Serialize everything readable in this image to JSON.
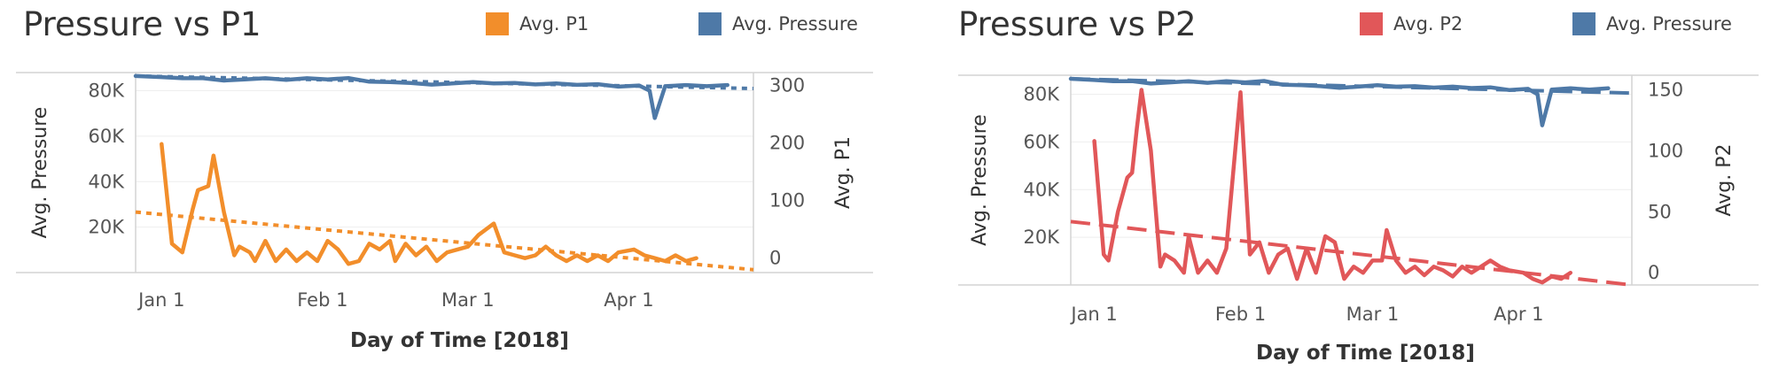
{
  "chart_data": [
    {
      "type": "line",
      "title": "Pressure vs P1",
      "xlabel": "Day of Time [2018]",
      "ylabel": "Avg. Pressure",
      "ylabel_right": "Avg. P1",
      "x_ticks": [
        "Jan 1",
        "Feb 1",
        "Mar 1",
        "Apr 1"
      ],
      "x_range": [
        "2017-12-27",
        "2018-04-25"
      ],
      "y_left": {
        "ticks": [
          "20K",
          "40K",
          "60K",
          "80K"
        ],
        "tick_values": [
          20000,
          40000,
          60000,
          80000
        ],
        "range": [
          0,
          88000
        ]
      },
      "y_right": {
        "ticks": [
          "0",
          "100",
          "200",
          "300"
        ],
        "tick_values": [
          0,
          100,
          200,
          300
        ],
        "range": [
          -25,
          322
        ]
      },
      "legend": [
        {
          "label": "Avg. P1",
          "color": "#F28E2B"
        },
        {
          "label": "Avg. Pressure",
          "color": "#4E79A7"
        }
      ],
      "legend_position": "top-right",
      "grid": true,
      "series": [
        {
          "name": "Avg. Pressure",
          "axis": "left",
          "color": "#4E79A7",
          "trend": {
            "style": "dotted",
            "start": [
              "2017-12-27",
              86500
            ],
            "end": [
              "2018-04-25",
              81000
            ]
          },
          "points": [
            [
              "2017-12-27",
              86500
            ],
            [
              "2018-01-01",
              86000
            ],
            [
              "2018-01-05",
              85500
            ],
            [
              "2018-01-09",
              85500
            ],
            [
              "2018-01-13",
              84500
            ],
            [
              "2018-01-17",
              85000
            ],
            [
              "2018-01-21",
              85500
            ],
            [
              "2018-01-25",
              84800
            ],
            [
              "2018-01-29",
              85500
            ],
            [
              "2018-02-02",
              85000
            ],
            [
              "2018-02-06",
              85600
            ],
            [
              "2018-02-10",
              84000
            ],
            [
              "2018-02-14",
              83800
            ],
            [
              "2018-02-18",
              83400
            ],
            [
              "2018-02-22",
              82700
            ],
            [
              "2018-02-26",
              83200
            ],
            [
              "2018-03-02",
              83800
            ],
            [
              "2018-03-06",
              83200
            ],
            [
              "2018-03-10",
              83400
            ],
            [
              "2018-03-14",
              82800
            ],
            [
              "2018-03-18",
              83200
            ],
            [
              "2018-03-22",
              82600
            ],
            [
              "2018-03-26",
              82900
            ],
            [
              "2018-03-30",
              81800
            ],
            [
              "2018-04-03",
              82300
            ],
            [
              "2018-04-05",
              80000
            ],
            [
              "2018-04-06",
              68000
            ],
            [
              "2018-04-08",
              82000
            ],
            [
              "2018-04-12",
              82500
            ],
            [
              "2018-04-16",
              82000
            ],
            [
              "2018-04-20",
              82500
            ]
          ]
        },
        {
          "name": "Avg. P1",
          "axis": "right",
          "color": "#F28E2B",
          "trend": {
            "style": "dotted",
            "start": [
              "2017-12-27",
              80
            ],
            "end": [
              "2018-04-25",
              -20
            ]
          },
          "points": [
            [
              "2018-01-01",
              198
            ],
            [
              "2018-01-03",
              25
            ],
            [
              "2018-01-05",
              10
            ],
            [
              "2018-01-07",
              85
            ],
            [
              "2018-01-08",
              118
            ],
            [
              "2018-01-10",
              125
            ],
            [
              "2018-01-11",
              178
            ],
            [
              "2018-01-13",
              80
            ],
            [
              "2018-01-15",
              5
            ],
            [
              "2018-01-16",
              20
            ],
            [
              "2018-01-18",
              10
            ],
            [
              "2018-01-19",
              -5
            ],
            [
              "2018-01-21",
              30
            ],
            [
              "2018-01-23",
              -5
            ],
            [
              "2018-01-25",
              15
            ],
            [
              "2018-01-27",
              -5
            ],
            [
              "2018-01-29",
              10
            ],
            [
              "2018-01-31",
              -5
            ],
            [
              "2018-02-02",
              30
            ],
            [
              "2018-02-04",
              15
            ],
            [
              "2018-02-06",
              -10
            ],
            [
              "2018-02-08",
              -5
            ],
            [
              "2018-02-10",
              25
            ],
            [
              "2018-02-12",
              15
            ],
            [
              "2018-02-14",
              30
            ],
            [
              "2018-02-15",
              -5
            ],
            [
              "2018-02-17",
              25
            ],
            [
              "2018-02-19",
              5
            ],
            [
              "2018-02-21",
              20
            ],
            [
              "2018-02-23",
              -5
            ],
            [
              "2018-02-25",
              10
            ],
            [
              "2018-02-27",
              15
            ],
            [
              "2018-03-01",
              20
            ],
            [
              "2018-03-03",
              40
            ],
            [
              "2018-03-06",
              60
            ],
            [
              "2018-03-08",
              10
            ],
            [
              "2018-03-10",
              5
            ],
            [
              "2018-03-12",
              0
            ],
            [
              "2018-03-14",
              5
            ],
            [
              "2018-03-16",
              20
            ],
            [
              "2018-03-18",
              5
            ],
            [
              "2018-03-20",
              -5
            ],
            [
              "2018-03-22",
              5
            ],
            [
              "2018-03-24",
              -5
            ],
            [
              "2018-03-26",
              5
            ],
            [
              "2018-03-28",
              -5
            ],
            [
              "2018-03-30",
              10
            ],
            [
              "2018-04-02",
              15
            ],
            [
              "2018-04-04",
              5
            ],
            [
              "2018-04-06",
              0
            ],
            [
              "2018-04-08",
              -5
            ],
            [
              "2018-04-10",
              5
            ],
            [
              "2018-04-12",
              -5
            ],
            [
              "2018-04-14",
              0
            ]
          ]
        }
      ]
    },
    {
      "type": "line",
      "title": "Pressure vs P2",
      "xlabel": "Day of Time [2018]",
      "ylabel": "Avg. Pressure",
      "ylabel_right": "Avg. P2",
      "x_ticks": [
        "Jan 1",
        "Feb 1",
        "Mar 1",
        "Apr 1"
      ],
      "x_range": [
        "2017-12-27",
        "2018-04-25"
      ],
      "y_left": {
        "ticks": [
          "20K",
          "40K",
          "60K",
          "80K"
        ],
        "tick_values": [
          20000,
          40000,
          60000,
          80000
        ],
        "range": [
          0,
          88000
        ]
      },
      "y_right": {
        "ticks": [
          "0",
          "50",
          "100",
          "150"
        ],
        "tick_values": [
          0,
          50,
          100,
          150
        ],
        "range": [
          -10,
          162
        ]
      },
      "legend": [
        {
          "label": "Avg. P2",
          "color": "#E15759"
        },
        {
          "label": "Avg. Pressure",
          "color": "#4E79A7"
        }
      ],
      "legend_position": "top-right",
      "grid": true,
      "series": [
        {
          "name": "Avg. Pressure",
          "axis": "left",
          "color": "#4E79A7",
          "trend": {
            "style": "dashed",
            "start": [
              "2017-12-27",
              86500
            ],
            "end": [
              "2018-04-25",
              80500
            ]
          },
          "points": [
            [
              "2017-12-27",
              86500
            ],
            [
              "2018-01-01",
              86000
            ],
            [
              "2018-01-05",
              85500
            ],
            [
              "2018-01-09",
              85500
            ],
            [
              "2018-01-13",
              84500
            ],
            [
              "2018-01-17",
              85000
            ],
            [
              "2018-01-21",
              85500
            ],
            [
              "2018-01-25",
              84800
            ],
            [
              "2018-01-29",
              85500
            ],
            [
              "2018-02-02",
              85000
            ],
            [
              "2018-02-06",
              85600
            ],
            [
              "2018-02-10",
              84000
            ],
            [
              "2018-02-14",
              83800
            ],
            [
              "2018-02-18",
              83400
            ],
            [
              "2018-02-22",
              82700
            ],
            [
              "2018-02-26",
              83200
            ],
            [
              "2018-03-02",
              83800
            ],
            [
              "2018-03-06",
              83200
            ],
            [
              "2018-03-10",
              83400
            ],
            [
              "2018-03-14",
              82800
            ],
            [
              "2018-03-18",
              83200
            ],
            [
              "2018-03-22",
              82600
            ],
            [
              "2018-03-26",
              82900
            ],
            [
              "2018-03-30",
              81800
            ],
            [
              "2018-04-03",
              82300
            ],
            [
              "2018-04-05",
              80000
            ],
            [
              "2018-04-06",
              67000
            ],
            [
              "2018-04-08",
              82000
            ],
            [
              "2018-04-12",
              82500
            ],
            [
              "2018-04-16",
              82000
            ],
            [
              "2018-04-20",
              82500
            ]
          ]
        },
        {
          "name": "Avg. P2",
          "axis": "right",
          "color": "#E15759",
          "trend": {
            "style": "dashed",
            "start": [
              "2017-12-27",
              42
            ],
            "end": [
              "2018-04-25",
              -10
            ]
          },
          "points": [
            [
              "2018-01-01",
              108
            ],
            [
              "2018-01-03",
              15
            ],
            [
              "2018-01-04",
              10
            ],
            [
              "2018-01-06",
              50
            ],
            [
              "2018-01-08",
              78
            ],
            [
              "2018-01-09",
              82
            ],
            [
              "2018-01-10",
              118
            ],
            [
              "2018-01-11",
              150
            ],
            [
              "2018-01-13",
              100
            ],
            [
              "2018-01-15",
              5
            ],
            [
              "2018-01-16",
              15
            ],
            [
              "2018-01-18",
              10
            ],
            [
              "2018-01-20",
              0
            ],
            [
              "2018-01-21",
              30
            ],
            [
              "2018-01-23",
              0
            ],
            [
              "2018-01-25",
              10
            ],
            [
              "2018-01-27",
              0
            ],
            [
              "2018-01-29",
              20
            ],
            [
              "2018-02-01",
              148
            ],
            [
              "2018-02-03",
              15
            ],
            [
              "2018-02-05",
              25
            ],
            [
              "2018-02-07",
              0
            ],
            [
              "2018-02-09",
              15
            ],
            [
              "2018-02-11",
              20
            ],
            [
              "2018-02-13",
              -5
            ],
            [
              "2018-02-15",
              20
            ],
            [
              "2018-02-17",
              0
            ],
            [
              "2018-02-19",
              30
            ],
            [
              "2018-02-21",
              25
            ],
            [
              "2018-02-23",
              -5
            ],
            [
              "2018-02-25",
              5
            ],
            [
              "2018-02-27",
              0
            ],
            [
              "2018-03-01",
              10
            ],
            [
              "2018-03-03",
              10
            ],
            [
              "2018-03-04",
              35
            ],
            [
              "2018-03-06",
              10
            ],
            [
              "2018-03-08",
              0
            ],
            [
              "2018-03-10",
              5
            ],
            [
              "2018-03-12",
              -2
            ],
            [
              "2018-03-14",
              5
            ],
            [
              "2018-03-16",
              2
            ],
            [
              "2018-03-18",
              -3
            ],
            [
              "2018-03-20",
              5
            ],
            [
              "2018-03-22",
              0
            ],
            [
              "2018-03-24",
              5
            ],
            [
              "2018-03-26",
              10
            ],
            [
              "2018-03-28",
              5
            ],
            [
              "2018-03-30",
              2
            ],
            [
              "2018-04-02",
              0
            ],
            [
              "2018-04-04",
              -5
            ],
            [
              "2018-04-06",
              -8
            ],
            [
              "2018-04-08",
              -3
            ],
            [
              "2018-04-10",
              -5
            ],
            [
              "2018-04-12",
              0
            ]
          ]
        }
      ]
    }
  ]
}
